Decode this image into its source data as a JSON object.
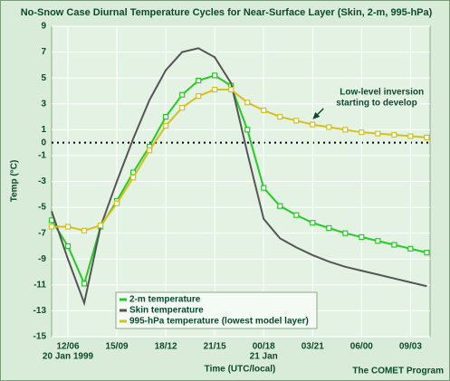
{
  "chart_data": {
    "type": "line",
    "title": "No-Snow Case Diurnal Temperature Cycles for Near-Surface Layer (Skin, 2-m, 995-hPa)",
    "ylabel": "Temp (°C)",
    "xlabel": "Time (UTC/local)",
    "credit": "The COMET Program",
    "date_labels": [
      {
        "x": 1,
        "text": "20 Jan 1999"
      },
      {
        "x": 13,
        "text": "21 Jan"
      }
    ],
    "annotation": {
      "lines": [
        "Low-level inversion",
        "starting to develop"
      ],
      "x": 16,
      "y": 1.8
    },
    "xlim": [
      0,
      23.2
    ],
    "ylim": [
      -15,
      9
    ],
    "xticks": [
      {
        "value": 1,
        "label": "12/06"
      },
      {
        "value": 4,
        "label": "15/09"
      },
      {
        "value": 7,
        "label": "18/12"
      },
      {
        "value": 10,
        "label": "21/15"
      },
      {
        "value": 13,
        "label": "00/18"
      },
      {
        "value": 16,
        "label": "03/21"
      },
      {
        "value": 19,
        "label": "06/00"
      },
      {
        "value": 22,
        "label": "09/03"
      }
    ],
    "yticks": [
      9,
      7,
      5,
      3,
      1,
      0,
      -1,
      -3,
      -5,
      -7,
      -9,
      -11,
      -13,
      -15
    ],
    "grid": true,
    "legend": "lower left",
    "x": [
      0,
      1,
      2,
      3,
      4,
      5,
      6,
      7,
      8,
      9,
      10,
      11,
      12,
      13,
      14,
      15,
      16,
      17,
      18,
      19,
      20,
      21,
      22,
      23
    ],
    "series": [
      {
        "name": "2-m temperature",
        "color": "#22cc22",
        "marker": true,
        "values": [
          -6,
          -8,
          -10.9,
          -6.5,
          -4.5,
          -2.3,
          -0.3,
          2,
          3.7,
          4.8,
          5.2,
          4.4,
          1,
          -3.5,
          -4.9,
          -5.6,
          -6.2,
          -6.6,
          -7,
          -7.3,
          -7.6,
          -7.9,
          -8.2,
          -8.5
        ]
      },
      {
        "name": "Skin temperature",
        "color": "#555555",
        "marker": false,
        "values": [
          -5.3,
          -9,
          -12.4,
          -6.5,
          -3,
          0.3,
          3.3,
          5.6,
          7,
          7.3,
          6.6,
          4.6,
          -0.8,
          -5.9,
          -7.4,
          -8.1,
          -8.7,
          -9.2,
          -9.6,
          -9.9,
          -10.2,
          -10.5,
          -10.8,
          -11.1
        ]
      },
      {
        "name": "995-hPa temperature (lowest model layer)",
        "color": "#d4c020",
        "marker": true,
        "values": [
          -6.5,
          -6.5,
          -6.8,
          -6.4,
          -4.7,
          -2.7,
          -0.6,
          1.3,
          2.7,
          3.6,
          4.1,
          4.1,
          3.1,
          2.5,
          2,
          1.7,
          1.4,
          1.2,
          1,
          0.8,
          0.7,
          0.6,
          0.5,
          0.4
        ]
      }
    ]
  }
}
